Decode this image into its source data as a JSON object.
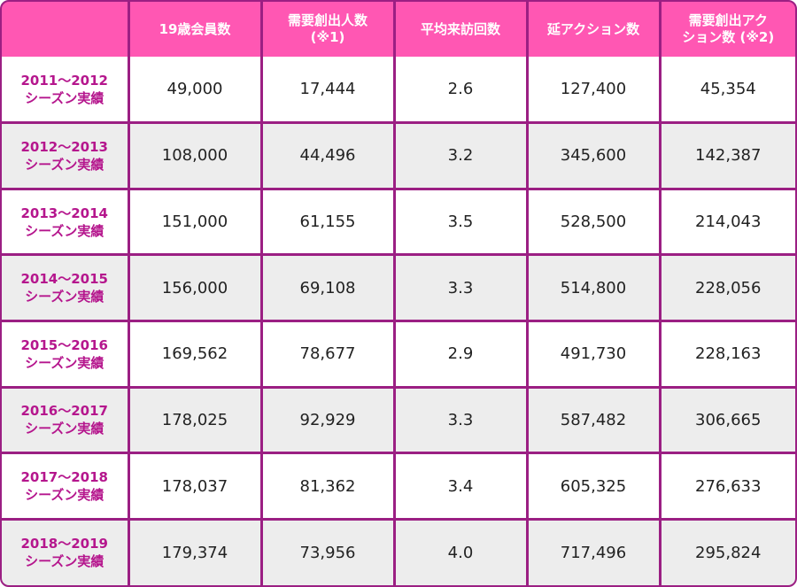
{
  "header": {
    "corner": "",
    "members_19": "19歳会員数",
    "demand_people": [
      "需要創出人数",
      "(※1)"
    ],
    "avg_visits": "平均来訪回数",
    "total_actions": "延アクション数",
    "demand_actions": [
      "需要創出アク",
      "ション数 (※2)"
    ]
  },
  "rows": [
    {
      "season": [
        "2011〜2012",
        "シーズン実績"
      ],
      "members_19": "49,000",
      "demand_people": "17,444",
      "avg_visits": "2.6",
      "total_actions": "127,400",
      "demand_actions": "45,354"
    },
    {
      "season": [
        "2012〜2013",
        "シーズン実績"
      ],
      "members_19": "108,000",
      "demand_people": "44,496",
      "avg_visits": "3.2",
      "total_actions": "345,600",
      "demand_actions": "142,387"
    },
    {
      "season": [
        "2013〜2014",
        "シーズン実績"
      ],
      "members_19": "151,000",
      "demand_people": "61,155",
      "avg_visits": "3.5",
      "total_actions": "528,500",
      "demand_actions": "214,043"
    },
    {
      "season": [
        "2014〜2015",
        "シーズン実績"
      ],
      "members_19": "156,000",
      "demand_people": "69,108",
      "avg_visits": "3.3",
      "total_actions": "514,800",
      "demand_actions": "228,056"
    },
    {
      "season": [
        "2015〜2016",
        "シーズン実績"
      ],
      "members_19": "169,562",
      "demand_people": "78,677",
      "avg_visits": "2.9",
      "total_actions": "491,730",
      "demand_actions": "228,163"
    },
    {
      "season": [
        "2016〜2017",
        "シーズン実績"
      ],
      "members_19": "178,025",
      "demand_people": "92,929",
      "avg_visits": "3.3",
      "total_actions": "587,482",
      "demand_actions": "306,665"
    },
    {
      "season": [
        "2017〜2018",
        "シーズン実績"
      ],
      "members_19": "178,037",
      "demand_people": "81,362",
      "avg_visits": "3.4",
      "total_actions": "605,325",
      "demand_actions": "276,633"
    },
    {
      "season": [
        "2018〜2019",
        "シーズン実績"
      ],
      "members_19": "179,374",
      "demand_people": "73,956",
      "avg_visits": "4.0",
      "total_actions": "717,496",
      "demand_actions": "295,824"
    }
  ],
  "colors": {
    "header_bg": "#ff57b3",
    "border": "#9b1f83",
    "season_text": "#b5168d",
    "row_alt_bg": "#ededed"
  }
}
